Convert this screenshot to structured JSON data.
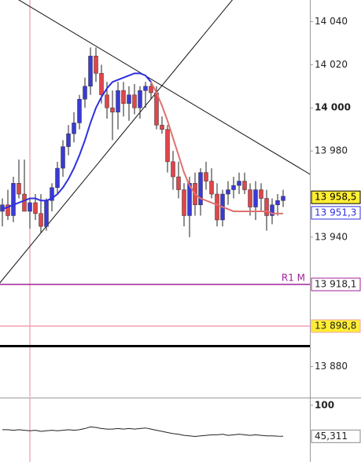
{
  "chart_data": {
    "type": "candlestick",
    "up_color": "#3a3ad6",
    "down_color": "#e0454a",
    "ohlc": [
      [
        13952,
        13958,
        13945,
        13955
      ],
      [
        13955,
        13962,
        13948,
        13950
      ],
      [
        13950,
        13968,
        13947,
        13965
      ],
      [
        13965,
        13976,
        13958,
        13960
      ],
      [
        13960,
        13976,
        13952,
        13952
      ],
      [
        13952,
        13958,
        13944,
        13956
      ],
      [
        13956,
        13960,
        13948,
        13951
      ],
      [
        13951,
        13960,
        13942,
        13945
      ],
      [
        13945,
        13958,
        13943,
        13957
      ],
      [
        13957,
        13965,
        13952,
        13963
      ],
      [
        13963,
        13975,
        13960,
        13972
      ],
      [
        13972,
        13985,
        13968,
        13982
      ],
      [
        13982,
        13992,
        13978,
        13988
      ],
      [
        13988,
        13998,
        13984,
        13993
      ],
      [
        13993,
        14006,
        13990,
        14004
      ],
      [
        14004,
        14014,
        14000,
        14010
      ],
      [
        14010,
        14028,
        14006,
        14024
      ],
      [
        14024,
        14028,
        14012,
        14016
      ],
      [
        14016,
        14020,
        14002,
        14006
      ],
      [
        14006,
        14012,
        13995,
        14000
      ],
      [
        14000,
        14008,
        13985,
        13998
      ],
      [
        13998,
        14012,
        13990,
        14008
      ],
      [
        14008,
        14012,
        13996,
        14002
      ],
      [
        14002,
        14010,
        13994,
        14006
      ],
      [
        14006,
        14011,
        13997,
        14000
      ],
      [
        14000,
        14010,
        13995,
        14008
      ],
      [
        14008,
        14012,
        14000,
        14010
      ],
      [
        14010,
        14012,
        14004,
        14007
      ],
      [
        14007,
        14010,
        13990,
        13992
      ],
      [
        13992,
        13996,
        13988,
        13990
      ],
      [
        13990,
        13992,
        13970,
        13975
      ],
      [
        13975,
        13980,
        13962,
        13968
      ],
      [
        13968,
        13975,
        13958,
        13962
      ],
      [
        13962,
        13965,
        13945,
        13950
      ],
      [
        13950,
        13968,
        13940,
        13965
      ],
      [
        13965,
        13970,
        13950,
        13955
      ],
      [
        13955,
        13972,
        13950,
        13970
      ],
      [
        13970,
        13975,
        13962,
        13966
      ],
      [
        13966,
        13972,
        13958,
        13960
      ],
      [
        13960,
        13965,
        13945,
        13948
      ],
      [
        13948,
        13962,
        13945,
        13960
      ],
      [
        13960,
        13966,
        13955,
        13962
      ],
      [
        13962,
        13968,
        13958,
        13964
      ],
      [
        13964,
        13970,
        13960,
        13966
      ],
      [
        13966,
        13970,
        13960,
        13962
      ],
      [
        13962,
        13965,
        13950,
        13954
      ],
      [
        13954,
        13966,
        13948,
        13962
      ],
      [
        13962,
        13965,
        13952,
        13958
      ],
      [
        13958,
        13962,
        13943,
        13950
      ],
      [
        13950,
        13958,
        13946,
        13955
      ],
      [
        13955,
        13960,
        13950,
        13957
      ],
      [
        13957,
        13962,
        13954,
        13959
      ]
    ],
    "series": [
      {
        "color": "#2f2fe0",
        "values": [
          13953,
          13954,
          13955,
          13956,
          13957,
          13958,
          13958,
          13957,
          13957,
          13958,
          13960,
          13963,
          13967,
          13972,
          13978,
          13985,
          13993,
          14000,
          14005,
          14009,
          14012,
          14013,
          14014,
          14015,
          14016,
          14016,
          14015,
          14012,
          null,
          null,
          null,
          null,
          null,
          null,
          null,
          null,
          null,
          null,
          null,
          null,
          null,
          null,
          null,
          null,
          null,
          null,
          null,
          null,
          null,
          null,
          null,
          null
        ]
      },
      {
        "color": "#e07070",
        "values": [
          null,
          null,
          null,
          null,
          null,
          null,
          null,
          null,
          null,
          null,
          null,
          null,
          null,
          null,
          null,
          null,
          null,
          null,
          null,
          null,
          null,
          null,
          null,
          null,
          null,
          null,
          null,
          14012,
          14007,
          14001,
          13994,
          13986,
          13978,
          13970,
          13964,
          13960,
          13958,
          13957,
          13956,
          13955,
          13954,
          13953,
          13952,
          13952,
          13952,
          13952,
          13952,
          13952,
          13952,
          13951,
          13951,
          13951
        ]
      }
    ],
    "ylim": [
      13866,
      14050
    ],
    "yticks": [
      {
        "value": 14040,
        "label": "14 040"
      },
      {
        "value": 14020,
        "label": "14 020"
      },
      {
        "value": 14000,
        "label": "14 000"
      },
      {
        "value": 13980,
        "label": "13 980"
      },
      {
        "value": 13940,
        "label": "13 940"
      },
      {
        "value": 13880,
        "label": "13 880"
      }
    ],
    "bold_tick": 14000,
    "vline": 5,
    "trendlines": [
      [
        [
          -0.43,
          13918.9
        ],
        [
          41.7,
          14049.8
        ]
      ],
      [
        [
          3.14,
          14049.8
        ],
        [
          56,
          13969
        ]
      ]
    ],
    "levels": [
      {
        "value": 13918.1,
        "label": "13 918,1",
        "name": "R1 M",
        "color": "#a0209a",
        "bg": "#ffffff"
      },
      {
        "value": 13898.8,
        "label": "13 898,8",
        "color": "#f0a0b0",
        "bg": "#ffee33"
      },
      {
        "value": 13889.5,
        "color": "#000000"
      }
    ],
    "price_labels": [
      {
        "value": 13958.5,
        "label": "13 958,5",
        "bg": "#ffee33",
        "color": "#000000"
      },
      {
        "value": 13951.3,
        "label": "13 951,3",
        "bg": "#ffffff",
        "color": "#2f2fe0"
      }
    ],
    "indicator": {
      "ylim": [
        0,
        115
      ],
      "yticks": [
        100
      ],
      "color": "#222222",
      "values": [
        57,
        57,
        56,
        57,
        56,
        55,
        56,
        54,
        55,
        56,
        55,
        56,
        57,
        56,
        57,
        59,
        62,
        61,
        59,
        58,
        58,
        59,
        58,
        59,
        58,
        59,
        60,
        58,
        56,
        54,
        52,
        50,
        49,
        47,
        46,
        45,
        46,
        47,
        48,
        48,
        49,
        47,
        48,
        49,
        48,
        47,
        48,
        47,
        46,
        46,
        45.5,
        45.311
      ],
      "last_label": {
        "value": 45.311,
        "label": "45,311"
      }
    }
  }
}
